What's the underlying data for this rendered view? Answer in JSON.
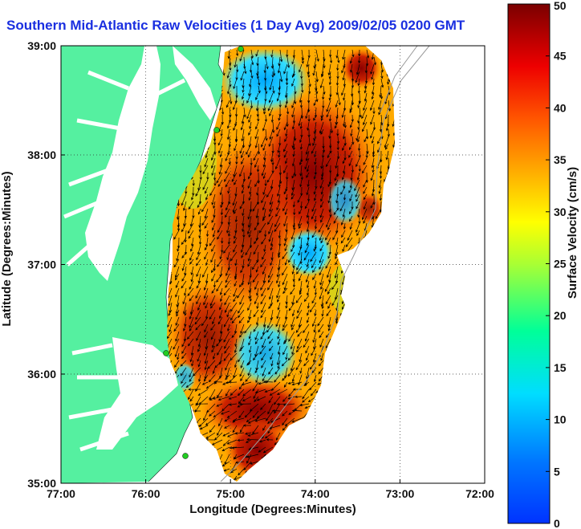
{
  "title": "Southern Mid-Atlantic Raw Velocities (1 Day Avg) 2009/02/05 0200 GMT",
  "x_axis": {
    "label": "Longitude (Degrees:Minutes)",
    "ticks": [
      "77:00",
      "76:00",
      "75:00",
      "74:00",
      "73:00",
      "72:00"
    ]
  },
  "y_axis": {
    "label": "Latitude (Degrees:Minutes)",
    "ticks": [
      "35:00",
      "36:00",
      "37:00",
      "38:00",
      "39:00"
    ]
  },
  "colorbar": {
    "label": "Surface Velocity (cm/s)",
    "min": 0,
    "max": 50,
    "ticks": [
      "0",
      "5",
      "10",
      "15",
      "20",
      "25",
      "30",
      "35",
      "40",
      "45",
      "50"
    ]
  },
  "colors": {
    "land": "#55f0a0",
    "water": "#ffffff",
    "title": "#1a2fe0",
    "station": "#22cc22"
  }
}
